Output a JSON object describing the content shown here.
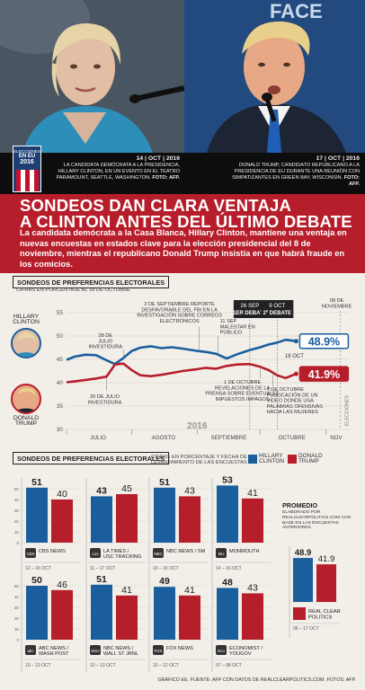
{
  "photos": {
    "left_alt": "Hillary Clinton",
    "right_alt": "Donald Trump",
    "backdrop_letters": "FACE"
  },
  "badge": {
    "line1": "ELECCIONES",
    "line2": "EN EU",
    "line3": "2016"
  },
  "captions": {
    "left": {
      "date": "14 | OCT | 2016",
      "text": "LA CANDIDATA DEMÓCRATA A LA PRESIDENCIA, HILLARY CLINTON, EN UN EVENTO EN EL TEATRO PARAMOUNT, SEATTLE, WASHINGTON.",
      "credit": "FOTO: AFP."
    },
    "right": {
      "date": "17 | OCT | 2016",
      "text": "DONALD TRUMP, CANDIDATO REPUBLICANO A LA PRESIDENCIA DE EU DURANTE UNA REUNIÓN CON SIMPATIZANTES EN GREEN BAY, WISCONSIN.",
      "credit": "FOTO: AFP."
    }
  },
  "headline": {
    "line1": "SONDEOS DAN CLARA VENTAJA",
    "line2": "A CLINTON ANTES DEL ÚLTIMO DEBATE",
    "lead": "La candidata demócrata a la Casa Blanca, Hillary Clinton, mantiene una ventaja en nuevas encuestas en estados clave para la elección presidencial del 8 de noviembre, mientras el republicano Donald Trump insistía en que habrá fraude en los comicios."
  },
  "colors": {
    "clinton": "#1a5e9e",
    "trump": "#b71e2b",
    "dark": "#222222"
  },
  "chart_data": [
    {
      "type": "line",
      "title": "SONDEOS DE PREFERENCIAS ELECTORALES",
      "subtitle": "CIFRAS EN PORCENTAJE AL 18 DE OCTUBRE",
      "ylim": [
        30,
        55
      ],
      "yticks": [
        30,
        35,
        40,
        45,
        50,
        55
      ],
      "month_labels": [
        "JULIO",
        "AGOSTO",
        "SEPTIEMBRE",
        "OCTUBRE",
        "NOV"
      ],
      "year_label": "2016",
      "side_label": "ELECCIONES",
      "series": [
        {
          "name": "HILLARY CLINTON",
          "final_label": "48.9%",
          "points": [
            [
              "07-01",
              44.9
            ],
            [
              "07-05",
              45.6
            ],
            [
              "07-10",
              46.0
            ],
            [
              "07-15",
              45.9
            ],
            [
              "07-20",
              44.8
            ],
            [
              "07-24",
              44.0
            ],
            [
              "07-28",
              45.3
            ],
            [
              "08-01",
              46.8
            ],
            [
              "08-05",
              47.5
            ],
            [
              "08-10",
              47.8
            ],
            [
              "08-15",
              47.4
            ],
            [
              "08-20",
              47.6
            ],
            [
              "08-25",
              47.3
            ],
            [
              "09-01",
              46.8
            ],
            [
              "09-05",
              46.6
            ],
            [
              "09-10",
              46.2
            ],
            [
              "09-15",
              45.2
            ],
            [
              "09-20",
              46.1
            ],
            [
              "09-26",
              47.0
            ],
            [
              "10-01",
              47.6
            ],
            [
              "10-05",
              48.2
            ],
            [
              "10-09",
              48.6
            ],
            [
              "10-13",
              49.2
            ],
            [
              "10-18",
              48.9
            ]
          ]
        },
        {
          "name": "DONALD TRUMP",
          "final_label": "41.9%",
          "points": [
            [
              "07-01",
              40.1
            ],
            [
              "07-05",
              40.3
            ],
            [
              "07-10",
              40.6
            ],
            [
              "07-15",
              40.9
            ],
            [
              "07-20",
              41.3
            ],
            [
              "07-24",
              43.9
            ],
            [
              "07-28",
              44.1
            ],
            [
              "08-01",
              42.7
            ],
            [
              "08-05",
              41.6
            ],
            [
              "08-10",
              41.4
            ],
            [
              "08-15",
              41.7
            ],
            [
              "08-20",
              42.1
            ],
            [
              "08-25",
              42.5
            ],
            [
              "09-01",
              42.9
            ],
            [
              "09-05",
              43.2
            ],
            [
              "09-10",
              43.0
            ],
            [
              "09-15",
              43.6
            ],
            [
              "09-20",
              43.9
            ],
            [
              "09-26",
              44.0
            ],
            [
              "10-01",
              43.4
            ],
            [
              "10-05",
              42.7
            ],
            [
              "10-09",
              41.6
            ],
            [
              "10-13",
              41.0
            ],
            [
              "10-18",
              41.9
            ]
          ]
        }
      ],
      "annotations": [
        {
          "date": "07-28",
          "text": "28 DE JULIO INVESTIDURA"
        },
        {
          "date": "07-20",
          "text": "20 DE JULIO INVESTIDURA"
        },
        {
          "date": "09-02",
          "text": "2 DE SEPTIEMBRE REPORTE DESFAVORABLE DEL FBI EN LA INVESTIGACIÓN SOBRE CORREOS ELECTRÓNICOS"
        },
        {
          "date": "09-11",
          "text": "11 SEP MALESTAR EN PÚBLICO"
        },
        {
          "date": "10-01",
          "text": "1 DE OCTUBRE REVELACIONES DE LA PRENSA SOBRE EVENTUALES IMPUESTOS IMPAGOS"
        },
        {
          "date": "10-07",
          "text": "7 DE OCTUBRE PUBLICACIÓN DE UN VIDEO DONDE USA PALABRAS OFENSIVAS HACIA LAS MUJERES"
        },
        {
          "date": "10-18",
          "text": "18 OCT"
        },
        {
          "date": "11-08",
          "text": "08 DE NOVIEMBRE"
        }
      ],
      "debates": [
        {
          "date": "09-26",
          "line1": "26 SEP",
          "line2": "1ER DEBATE"
        },
        {
          "date": "10-09",
          "line1": "9 OCT",
          "line2": "2º DEBATE"
        }
      ]
    },
    {
      "type": "bar",
      "title": "SONDEOS DE PREFERENCIAS ELECTORALES",
      "subtitle": "CIFRAS EN PORCENTAJE Y FECHA DE LEVANTAMIENTO DE LAS ENCUESTAS",
      "legend": [
        "HILLARY CLINTON",
        "DONALD TRUMP"
      ],
      "ylim": [
        0,
        60
      ],
      "yticks": [
        0,
        10,
        20,
        30,
        40,
        50
      ],
      "polls": [
        {
          "source": "CBS NEWS",
          "logo": "CBS",
          "dates": "12 – 16 OCT",
          "clinton": 51,
          "trump": 40
        },
        {
          "source": "LA TIMES / USC TRACKING",
          "logo": "Los Angeles Times",
          "dates": "11 – 17 OCT",
          "clinton": 43,
          "trump": 45
        },
        {
          "source": "NBC NEWS / SM",
          "logo": "NBC",
          "dates": "10 – 16 OCT",
          "clinton": 51,
          "trump": 43
        },
        {
          "source": "MONMOUTH",
          "logo": "MU",
          "dates": "14 – 16 OCT",
          "clinton": 53,
          "trump": 41
        },
        {
          "source": "ABC NEWS / WASH POST",
          "logo": "abc",
          "dates": "10 – 13 OCT",
          "clinton": 50,
          "trump": 46
        },
        {
          "source": "NBC NEWS / WALL ST JRNL",
          "logo": "WSJ",
          "dates": "10 – 13 OCT",
          "clinton": 51,
          "trump": 41
        },
        {
          "source": "FOX NEWS",
          "logo": "FOX",
          "dates": "10 – 12 OCT",
          "clinton": 49,
          "trump": 41
        },
        {
          "source": "ECONOMIST / YOUGOV",
          "logo": "Economist",
          "dates": "07 – 08 OCT",
          "clinton": 48,
          "trump": 43
        }
      ],
      "average": {
        "title": "PROMEDIO",
        "note": "ELABORADO POR REALCLEARPOLITICS.COM CON BASE EN LAS ENCUESTAS ANTERIORES",
        "source": "REAL CLEAR POLITICS",
        "dates": "06 – 17 OCT",
        "clinton": 48.9,
        "trump": 41.9
      }
    }
  ],
  "footer": "GRÁFICO EE. FUENTE: AFP CON DATOS DE REALCLEARPOLITICS.COM. FOTOS: AFP."
}
